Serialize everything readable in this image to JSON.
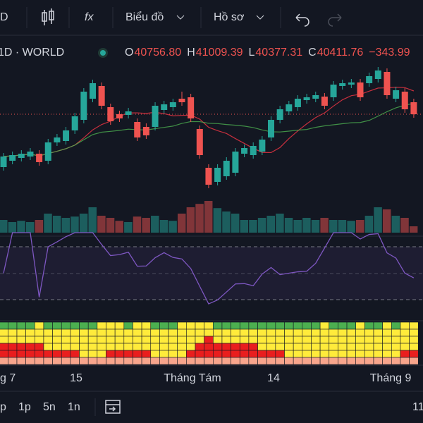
{
  "toolbar": {
    "interval": "D",
    "fx": "fx",
    "chart_menu": "Biểu đồ",
    "profile_menu": "Hồ sơ"
  },
  "legend": {
    "symbol": "1D · WORLD",
    "ohlc": [
      {
        "label": "O",
        "value": "40756.80"
      },
      {
        "label": "H",
        "value": "41009.39"
      },
      {
        "label": "L",
        "value": "40377.31"
      },
      {
        "label": "C",
        "value": "40411.76"
      }
    ],
    "change": "−343.99"
  },
  "chart_data": {
    "type": "candlestick",
    "ylim": [
      39000,
      43900
    ],
    "volume_ylim": [
      0,
      100
    ],
    "up_color": "#26a69a",
    "down_color": "#ef5350",
    "open": [
      40260,
      40440,
      40520,
      40560,
      40640,
      40440,
      40960,
      41000,
      41300,
      41600,
      42200,
      42560,
      41960,
      41760,
      41740,
      41540,
      41400,
      41400,
      41880,
      41960,
      42200,
      42240,
      41340,
      40240,
      39840,
      40000,
      40100,
      40640,
      40600,
      40700,
      41100,
      41600,
      41840,
      41960,
      42160,
      42200,
      42260,
      42240,
      42560,
      42600,
      42660,
      42640,
      42760,
      42960,
      42200,
      42400,
      42100
    ],
    "high": [
      40660,
      40700,
      40740,
      40800,
      40740,
      41060,
      41200,
      41400,
      41800,
      42500,
      42740,
      42660,
      42060,
      41860,
      41940,
      41640,
      41500,
      42100,
      42140,
      42200,
      42400,
      42340,
      41440,
      40340,
      40340,
      40540,
      40800,
      40900,
      40960,
      41140,
      41700,
      42000,
      42140,
      42300,
      42340,
      42400,
      42360,
      42700,
      42740,
      42760,
      42760,
      42940,
      43100,
      43060,
      42540,
      42500,
      42200
    ],
    "low": [
      40160,
      40340,
      40420,
      40460,
      40300,
      40340,
      40860,
      40900,
      41200,
      41500,
      42100,
      41900,
      41460,
      41540,
      41640,
      41000,
      41060,
      41300,
      41780,
      41860,
      42000,
      41540,
      40500,
      39660,
      39740,
      39900,
      40000,
      40540,
      40500,
      40600,
      41000,
      41500,
      41740,
      41860,
      42060,
      42100,
      41900,
      42140,
      42460,
      42500,
      42140,
      42540,
      42660,
      42200,
      42100,
      41800,
      41660
    ],
    "close": [
      40560,
      40600,
      40640,
      40700,
      40400,
      40960,
      41100,
      41300,
      41700,
      42400,
      42640,
      42000,
      41560,
      41640,
      41840,
      41100,
      41160,
      42000,
      42040,
      42100,
      42100,
      41640,
      40600,
      39760,
      40240,
      40440,
      40700,
      40800,
      40860,
      41040,
      41600,
      41900,
      42040,
      42200,
      42240,
      42300,
      42000,
      42600,
      42640,
      42660,
      42240,
      42840,
      43000,
      42300,
      42440,
      41900,
      41760
    ],
    "volume": [
      30,
      25,
      28,
      25,
      30,
      45,
      40,
      35,
      38,
      45,
      60,
      40,
      35,
      28,
      25,
      38,
      35,
      40,
      30,
      28,
      45,
      60,
      68,
      75,
      58,
      50,
      45,
      30,
      30,
      35,
      40,
      45,
      35,
      30,
      35,
      30,
      35,
      30,
      30,
      28,
      30,
      40,
      60,
      55,
      40,
      35,
      15
    ],
    "x_labels": [
      "g 7",
      "15",
      "Tháng Tám",
      "14",
      "Tháng 9"
    ]
  },
  "timeframes": [
    "p",
    "1p",
    "5n",
    "1n"
  ],
  "right_text": "11"
}
